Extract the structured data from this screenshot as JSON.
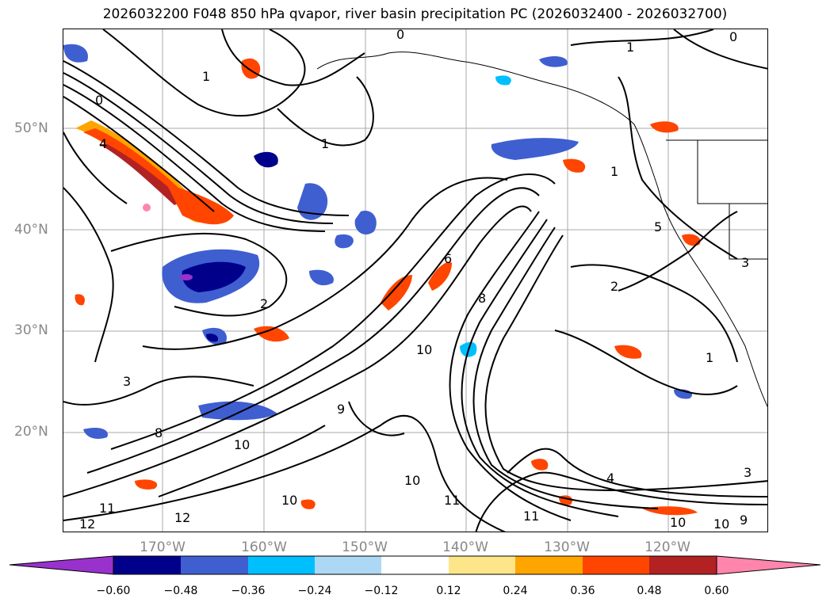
{
  "title": "2026032200 F048 850 hPa qvapor, river basin precipitation PC (2026032400 - 2026032700)",
  "map": {
    "lat_labels": [
      "50°N",
      "40°N",
      "30°N",
      "20°N"
    ],
    "lon_labels": [
      "170°W",
      "160°W",
      "150°W",
      "140°W",
      "130°W",
      "120°W"
    ],
    "contour_labels": [
      "0",
      "1",
      "1",
      "0",
      "1",
      "0",
      "1",
      "4",
      "2",
      "6",
      "10",
      "8",
      "3",
      "9",
      "10",
      "8",
      "10",
      "11",
      "12",
      "10",
      "11",
      "12",
      "11",
      "10",
      "4",
      "3",
      "2",
      "10",
      "9",
      "1",
      "3",
      "5"
    ]
  },
  "colorbar": {
    "ticks": [
      "−0.60",
      "−0.48",
      "−0.36",
      "−0.24",
      "−0.12",
      "0.12",
      "0.24",
      "0.36",
      "0.48",
      "0.60"
    ],
    "colors": [
      "#9932cc",
      "#00008b",
      "#3f5fd0",
      "#00bfff",
      "#add8f5",
      "#ffffff",
      "#fde68a",
      "#ffa500",
      "#ff4500",
      "#b22222",
      "#ff85ad"
    ]
  }
}
